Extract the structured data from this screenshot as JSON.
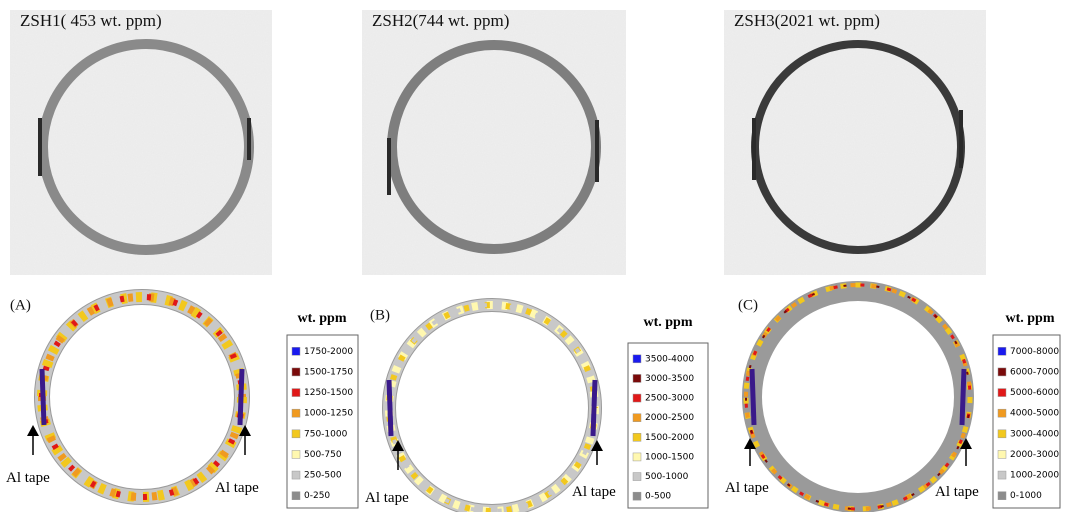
{
  "top_panels": [
    {
      "label": "ZSH1( 453 wt. ppm)"
    },
    {
      "label": "ZSH2(744 wt. ppm)"
    },
    {
      "label": "ZSH3(2021 wt. ppm)"
    }
  ],
  "bottom_panels": [
    {
      "label": "(A)",
      "legend_title": "wt. ppm",
      "legend": [
        {
          "label": "1750-2000",
          "color": "#1a1aee"
        },
        {
          "label": "1500-1750",
          "color": "#7a0a0a"
        },
        {
          "label": "1250-1500",
          "color": "#e01818"
        },
        {
          "label": "1000-1250",
          "color": "#f09a20"
        },
        {
          "label": "750-1000",
          "color": "#f2c81e"
        },
        {
          "label": "500-750",
          "color": "#fff8b0"
        },
        {
          "label": "250-500",
          "color": "#c8c8c8"
        },
        {
          "label": "0-250",
          "color": "#8c8c8c"
        }
      ],
      "annotations": [
        "Al tape",
        "Al tape"
      ]
    },
    {
      "label": "(B)",
      "legend_title": "wt. ppm",
      "legend": [
        {
          "label": "3500-4000",
          "color": "#1a1aee"
        },
        {
          "label": "3000-3500",
          "color": "#7a0a0a"
        },
        {
          "label": "2500-3000",
          "color": "#e01818"
        },
        {
          "label": "2000-2500",
          "color": "#f09a20"
        },
        {
          "label": "1500-2000",
          "color": "#f2c81e"
        },
        {
          "label": "1000-1500",
          "color": "#fff8b0"
        },
        {
          "label": "500-1000",
          "color": "#c8c8c8"
        },
        {
          "label": "0-500",
          "color": "#8c8c8c"
        }
      ],
      "annotations": [
        "Al tape",
        "Al tape"
      ]
    },
    {
      "label": "(C)",
      "legend_title": "wt. ppm",
      "legend": [
        {
          "label": "7000-8000",
          "color": "#1a1aee"
        },
        {
          "label": "6000-7000",
          "color": "#7a0a0a"
        },
        {
          "label": "5000-6000",
          "color": "#e01818"
        },
        {
          "label": "4000-5000",
          "color": "#f09a20"
        },
        {
          "label": "3000-4000",
          "color": "#f2c81e"
        },
        {
          "label": "2000-3000",
          "color": "#fff8b0"
        },
        {
          "label": "1000-2000",
          "color": "#c8c8c8"
        },
        {
          "label": "0-1000",
          "color": "#8c8c8c"
        }
      ],
      "annotations": [
        "Al tape",
        "Al tape"
      ]
    }
  ]
}
